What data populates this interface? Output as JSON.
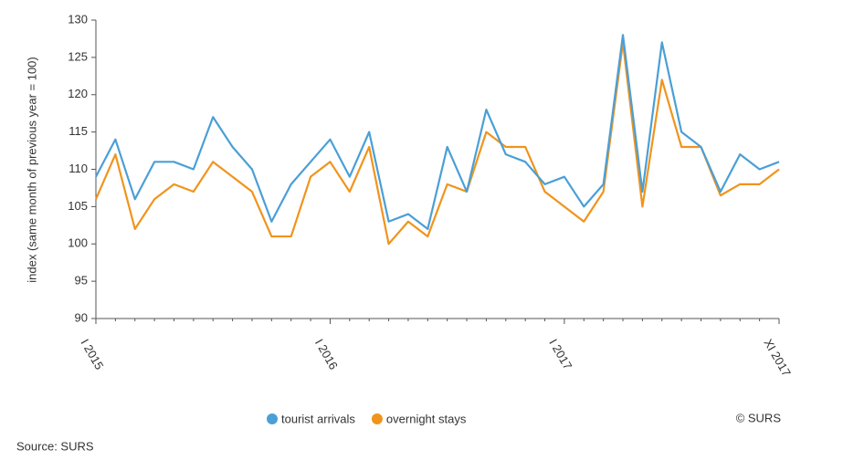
{
  "chart_data": {
    "type": "line",
    "ylabel": "index (same month of previous year = 100)",
    "categories": [
      "I 2015",
      null,
      null,
      null,
      null,
      null,
      null,
      null,
      null,
      null,
      null,
      null,
      "I 2016",
      null,
      null,
      null,
      null,
      null,
      null,
      null,
      null,
      null,
      null,
      null,
      "I 2017",
      null,
      null,
      null,
      null,
      null,
      null,
      null,
      null,
      null,
      null,
      "XI 2017"
    ],
    "series": [
      {
        "name": "tourist arrivals",
        "color": "#4a9fd6",
        "values": [
          109,
          114,
          106,
          111,
          111,
          110,
          117,
          113,
          110,
          103,
          108,
          111,
          114,
          109,
          115,
          103,
          104,
          102,
          113,
          107,
          118,
          112,
          111,
          108,
          109,
          105,
          108,
          128,
          107,
          127,
          115,
          113,
          107,
          112,
          110,
          111
        ]
      },
      {
        "name": "overnight stays",
        "color": "#f0941c",
        "values": [
          106,
          112,
          102,
          106,
          108,
          107,
          111,
          109,
          107,
          101,
          101,
          109,
          111,
          107,
          113,
          100,
          103,
          101,
          108,
          107,
          115,
          113,
          113,
          107,
          105,
          103,
          107,
          127,
          105,
          122,
          113,
          113,
          106.5,
          108,
          108,
          110
        ]
      }
    ],
    "ylim": [
      90,
      130
    ],
    "yticks": [
      90,
      95,
      100,
      105,
      110,
      115,
      120,
      125,
      130
    ],
    "grid": false,
    "legend": "bottom",
    "credit": "© SURS",
    "source": "Source: SURS"
  }
}
